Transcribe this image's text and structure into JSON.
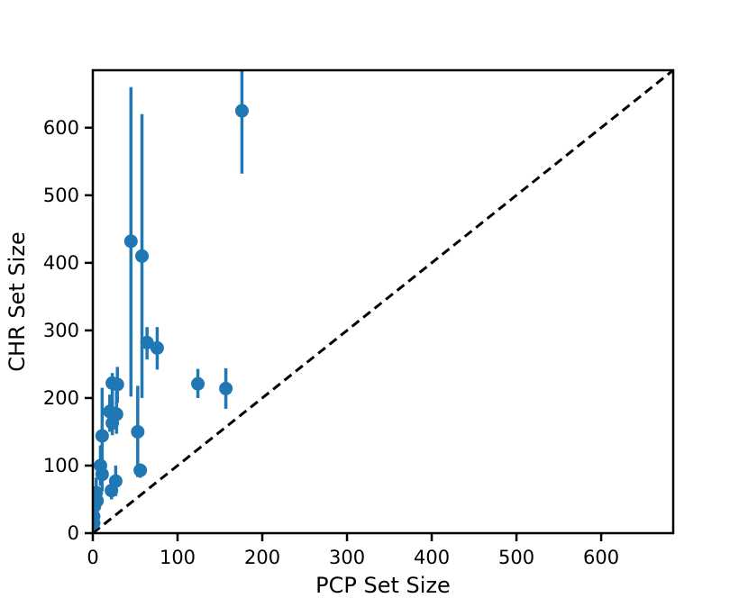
{
  "chart_data": {
    "type": "scatter",
    "xlabel": "PCP Set Size",
    "ylabel": "CHR Set Size",
    "xlim": [
      0,
      685
    ],
    "ylim": [
      0,
      685
    ],
    "xticks": [
      0,
      100,
      200,
      300,
      400,
      500,
      600
    ],
    "yticks": [
      0,
      100,
      200,
      300,
      400,
      500,
      600
    ],
    "grid": false,
    "reference_line": {
      "style": "dashed",
      "color": "#000000",
      "from": [
        0,
        0
      ],
      "to": [
        685,
        685
      ]
    },
    "marker_color": "#1f77b4",
    "points": [
      {
        "x": 176,
        "y": 625,
        "ylow": 532,
        "yhigh": 685
      },
      {
        "x": 45,
        "y": 432,
        "ylow": 202,
        "yhigh": 660
      },
      {
        "x": 58,
        "y": 410,
        "ylow": 200,
        "yhigh": 620
      },
      {
        "x": 64,
        "y": 282,
        "ylow": 257,
        "yhigh": 305
      },
      {
        "x": 76,
        "y": 274,
        "ylow": 242,
        "yhigh": 305
      },
      {
        "x": 124,
        "y": 221,
        "ylow": 200,
        "yhigh": 243
      },
      {
        "x": 157,
        "y": 214,
        "ylow": 184,
        "yhigh": 244
      },
      {
        "x": 23,
        "y": 222,
        "ylow": 180,
        "yhigh": 237
      },
      {
        "x": 29,
        "y": 220,
        "ylow": 193,
        "yhigh": 246
      },
      {
        "x": 20,
        "y": 180,
        "ylow": 150,
        "yhigh": 205
      },
      {
        "x": 28,
        "y": 176,
        "ylow": 147,
        "yhigh": 210
      },
      {
        "x": 23,
        "y": 163,
        "ylow": 145,
        "yhigh": 196
      },
      {
        "x": 11,
        "y": 144,
        "ylow": 85,
        "yhigh": 215
      },
      {
        "x": 53,
        "y": 150,
        "ylow": 83,
        "yhigh": 218
      },
      {
        "x": 9,
        "y": 100,
        "ylow": 70,
        "yhigh": 130
      },
      {
        "x": 11,
        "y": 87,
        "ylow": 62,
        "yhigh": 110
      },
      {
        "x": 56,
        "y": 93,
        "ylow": 82,
        "yhigh": 103
      },
      {
        "x": 27,
        "y": 77,
        "ylow": 55,
        "yhigh": 100
      },
      {
        "x": 22,
        "y": 63,
        "ylow": 50,
        "yhigh": 80
      },
      {
        "x": 4,
        "y": 60,
        "ylow": 40,
        "yhigh": 82
      },
      {
        "x": 5,
        "y": 48,
        "ylow": 30,
        "yhigh": 65
      },
      {
        "x": 2,
        "y": 40,
        "ylow": 25,
        "yhigh": 55
      },
      {
        "x": 1,
        "y": 25,
        "ylow": 10,
        "yhigh": 40
      },
      {
        "x": 1,
        "y": 15,
        "ylow": 5,
        "yhigh": 28
      }
    ]
  }
}
